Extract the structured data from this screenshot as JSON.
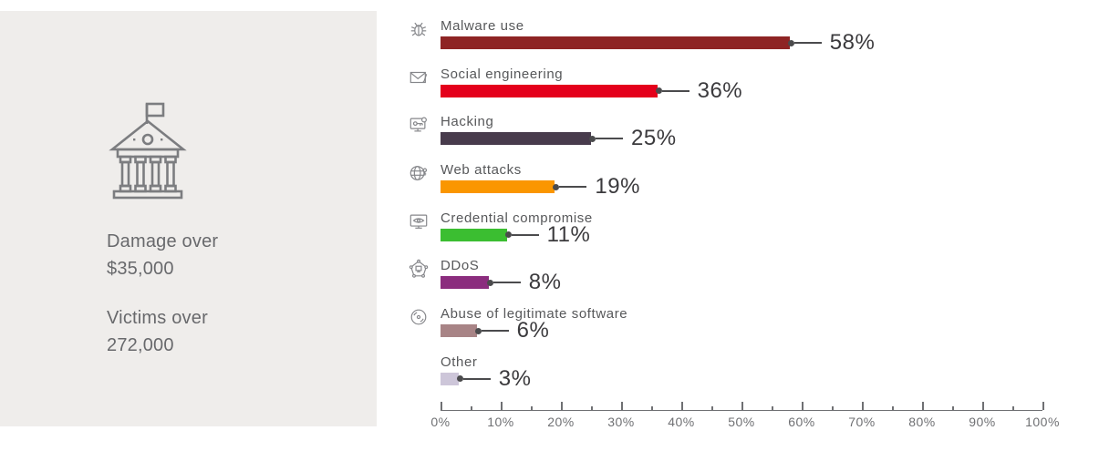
{
  "panel": {
    "icon": "bank-icon",
    "stats": [
      {
        "line1": "Damage over",
        "line2": "$35,000"
      },
      {
        "line1": "Victims over",
        "line2": "272,000"
      }
    ]
  },
  "chart_data": {
    "type": "bar",
    "orientation": "horizontal",
    "title": "",
    "xlabel": "",
    "ylabel": "",
    "categories": [
      "Malware use",
      "Social engineering",
      "Hacking",
      "Web attacks",
      "Credential compromise",
      "DDoS",
      "Abuse of legitimate software",
      "Other"
    ],
    "values": [
      58,
      36,
      25,
      19,
      11,
      8,
      6,
      3
    ],
    "value_labels": [
      "58%",
      "36%",
      "25%",
      "19%",
      "11%",
      "8%",
      "6%",
      "3%"
    ],
    "bar_colors": [
      "#8E2424",
      "#E4001B",
      "#483B4C",
      "#FA9600",
      "#3BBE31",
      "#8B2D7E",
      "#A88486",
      "#CDC6D9"
    ],
    "icons": [
      "bug-icon",
      "envelope-icon",
      "monitor-key-icon",
      "globe-key-icon",
      "monitor-eye-icon",
      "pentagon-network-icon",
      "disc-icon",
      null
    ],
    "xlim": [
      0,
      100
    ],
    "x_tick_labels": [
      "0%",
      "10%",
      "20%",
      "30%",
      "40%",
      "50%",
      "60%",
      "70%",
      "80%",
      "90%",
      "100%"
    ],
    "minor_tick_step": 5,
    "grid": false,
    "legend": false
  },
  "theme": {
    "panel_bg": "#EFEDEB",
    "icon_stroke": "#85868A",
    "panel_text": "#68696C",
    "label_color": "#57585A",
    "value_color": "#3B3A3D",
    "axis_color": "#6F7073",
    "connector_color": "#4B4B4D"
  }
}
